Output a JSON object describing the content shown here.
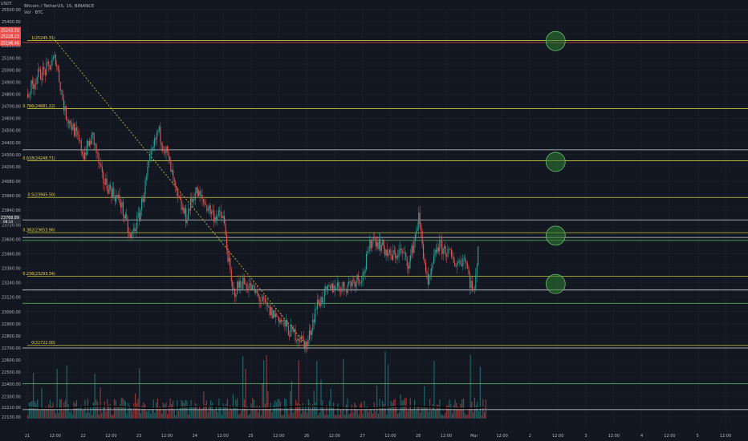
{
  "header": {
    "quote_label": "USDT",
    "symbol_line": "Bitcoin / TetherUS, 15, BINANCE",
    "volume_line": "Vol · BTC"
  },
  "colors": {
    "background": "#131722",
    "grid": "#1e222d",
    "up": "#26a69a",
    "down": "#ef5350",
    "fib": "#c8c83a",
    "level_white": "#d1d4dc",
    "level_green": "#66bb6a",
    "level_red": "#ef5350",
    "marker_fill": "#2e7d32",
    "marker_stroke": "#66bb6a",
    "label": "#f0d84a",
    "axis_text": "#b2b5be",
    "volume_ma": "#000000"
  },
  "chart_data": {
    "type": "candlestick",
    "title": "Bitcoin / TetherUS, 15, BINANCE",
    "ylabel": "USDT",
    "ylim": [
      22050,
      25500
    ],
    "y_ticks": [
      22130,
      22210,
      22300,
      22400,
      22500,
      22600,
      22700,
      22800,
      22900,
      23000,
      23120,
      23240,
      23360,
      23480,
      23600,
      23720,
      23840,
      23960,
      24080,
      24200,
      24300,
      24400,
      24500,
      24600,
      24700,
      24800,
      24900,
      25000,
      25100,
      25200,
      25300,
      25400,
      25500
    ],
    "x_tick_labels": [
      "21",
      "12:00",
      "22",
      "12:00",
      "23",
      "12:00",
      "24",
      "12:00",
      "25",
      "12:00",
      "26",
      "12:00",
      "27",
      "12:00",
      "28",
      "12:00",
      "Mar",
      "12:00",
      "2",
      "12:00",
      "3",
      "12:00",
      "4",
      "12:00",
      "5",
      "12:00"
    ],
    "x_tick_hours": [
      0,
      12,
      24,
      36,
      48,
      60,
      72,
      84,
      96,
      108,
      120,
      132,
      144,
      156,
      168,
      180,
      192,
      204,
      216,
      228,
      240,
      252,
      264,
      276,
      288,
      300
    ],
    "series": [
      {
        "name": "BTCUSDT",
        "type": "candlestick",
        "x_hours": [
          0,
          4,
          8,
          12,
          16,
          20,
          24,
          28,
          32,
          36,
          40,
          44,
          48,
          52,
          56,
          60,
          64,
          68,
          72,
          76,
          80,
          84,
          88,
          92,
          96,
          100,
          104,
          108,
          112,
          116,
          120,
          124,
          128,
          132,
          136,
          140,
          144,
          148,
          152,
          156,
          160,
          164,
          168,
          172,
          176,
          180,
          184,
          188,
          190,
          192,
          194
        ],
        "close": [
          24800,
          24950,
          25000,
          25100,
          24650,
          24500,
          24300,
          24450,
          24100,
          24000,
          23900,
          23600,
          23800,
          24200,
          24500,
          24300,
          23950,
          23780,
          24000,
          23900,
          23800,
          23780,
          23150,
          23250,
          23200,
          23100,
          23000,
          22950,
          22850,
          22800,
          22720,
          23050,
          23150,
          23220,
          23200,
          23260,
          23300,
          23620,
          23550,
          23450,
          23500,
          23400,
          23780,
          23200,
          23550,
          23500,
          23400,
          23450,
          23250,
          23150,
          23700
        ]
      },
      {
        "name": "Vol · BTC",
        "type": "volume",
        "ma_level": 22210
      }
    ],
    "fib_levels": [
      {
        "label": "1(25245.31)",
        "price": 25245
      },
      {
        "label": "0.786(24681.22)",
        "price": 24681
      },
      {
        "label": "0.618(24248.71)",
        "price": 24249
      },
      {
        "label": "0.5(23945.50)",
        "price": 23946
      },
      {
        "label": "0.382(23653.96)",
        "price": 23654
      },
      {
        "label": "0.236(23293.34)",
        "price": 23293
      },
      {
        "label": "0(22722.00)",
        "price": 22722
      }
    ],
    "horizontal_levels": [
      {
        "price": 25228,
        "color": "red"
      },
      {
        "price": 24340,
        "color": "white"
      },
      {
        "price": 23760,
        "color": "white"
      },
      {
        "price": 23615,
        "color": "white"
      },
      {
        "price": 23590,
        "color": "green"
      },
      {
        "price": 23180,
        "color": "white"
      },
      {
        "price": 23070,
        "color": "green"
      },
      {
        "price": 22700,
        "color": "white"
      },
      {
        "price": 22405,
        "color": "green"
      },
      {
        "price": 22190,
        "color": "white"
      }
    ],
    "target_markers": [
      {
        "hour": 227,
        "price": 25240
      },
      {
        "hour": 227,
        "price": 24240
      },
      {
        "hour": 227,
        "price": 23630
      },
      {
        "hour": 227,
        "price": 23230
      }
    ],
    "trend_line": {
      "from": {
        "hour": 12,
        "price": 25245
      },
      "to": {
        "hour": 120,
        "price": 22722
      }
    },
    "price_tags": [
      {
        "text": "25243.31",
        "price": 25330
      },
      {
        "text": "25228.23",
        "price": 25280
      },
      {
        "text": "25196.46",
        "price": 25225
      }
    ],
    "current_price": {
      "text": "23768.89",
      "sub": "08:14",
      "price": 23768
    }
  }
}
